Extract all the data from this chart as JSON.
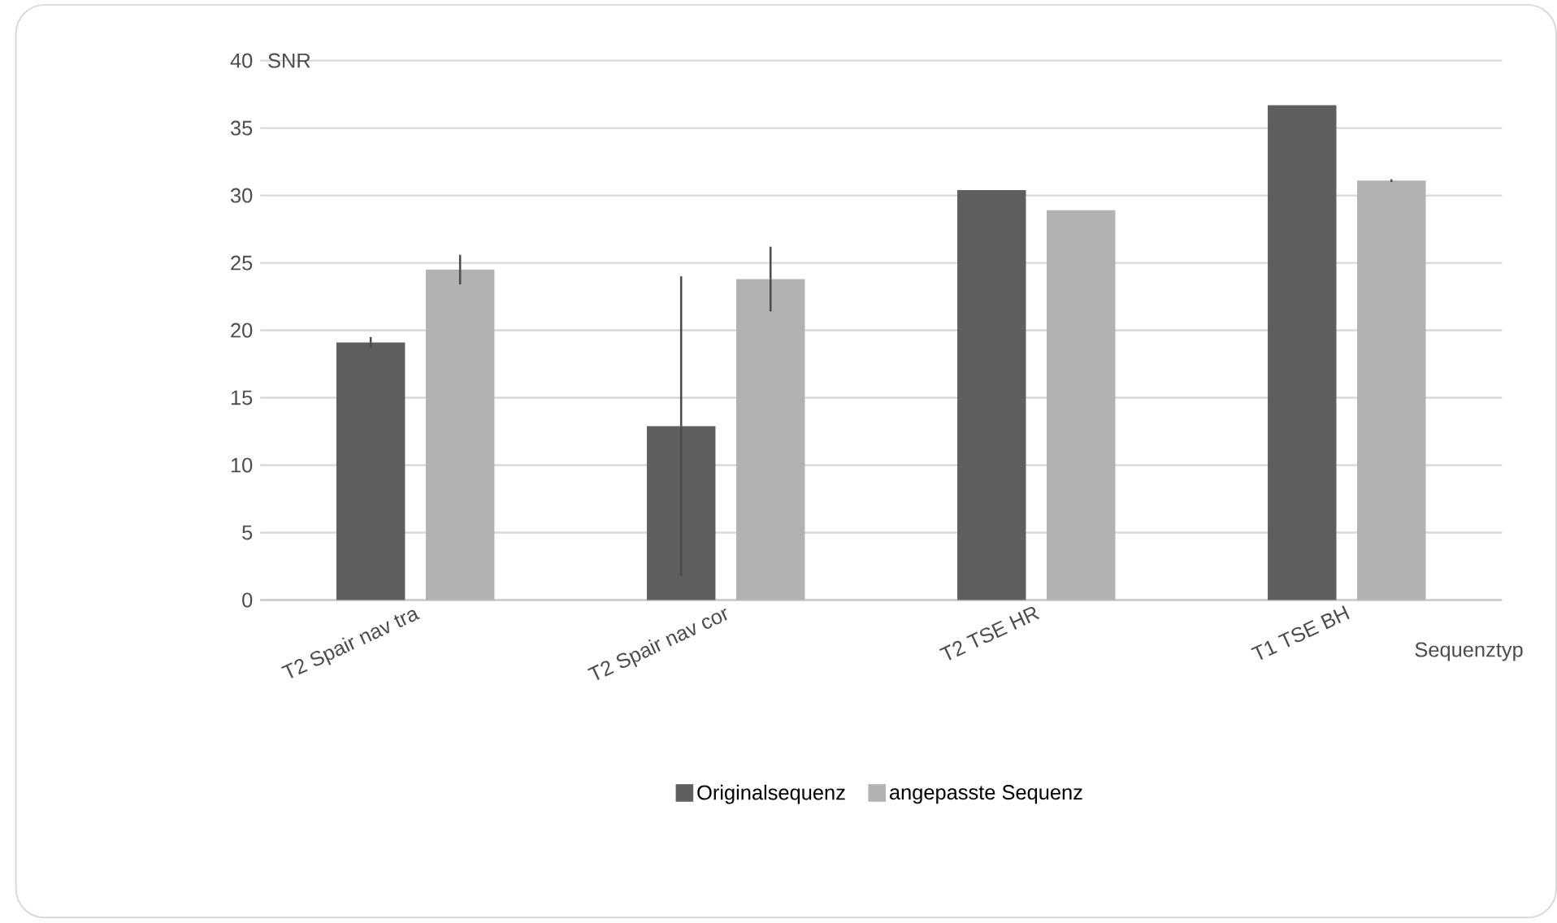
{
  "chart_data": {
    "type": "bar",
    "xlabel": "Sequenztyp",
    "ylabel": "SNR",
    "categories": [
      "T2 Spair nav tra",
      "T2 Spair nav cor",
      "T2 TSE HR",
      "T1 TSE BH"
    ],
    "series": [
      {
        "name": "Originalsequenz",
        "color": "#5f5f5f",
        "values": [
          19.1,
          12.9,
          30.4,
          36.7
        ],
        "errors": [
          0.4,
          11.1,
          null,
          null
        ]
      },
      {
        "name": "angepasste Sequenz",
        "color": "#b2b2b2",
        "values": [
          24.5,
          23.8,
          28.9,
          31.1
        ],
        "errors": [
          1.1,
          2.4,
          null,
          0.1
        ]
      }
    ],
    "ylim": [
      0,
      40
    ],
    "yticks": [
      0,
      5,
      10,
      15,
      20,
      25,
      30,
      35,
      40
    ],
    "grid": "y",
    "legend": "bottom"
  }
}
